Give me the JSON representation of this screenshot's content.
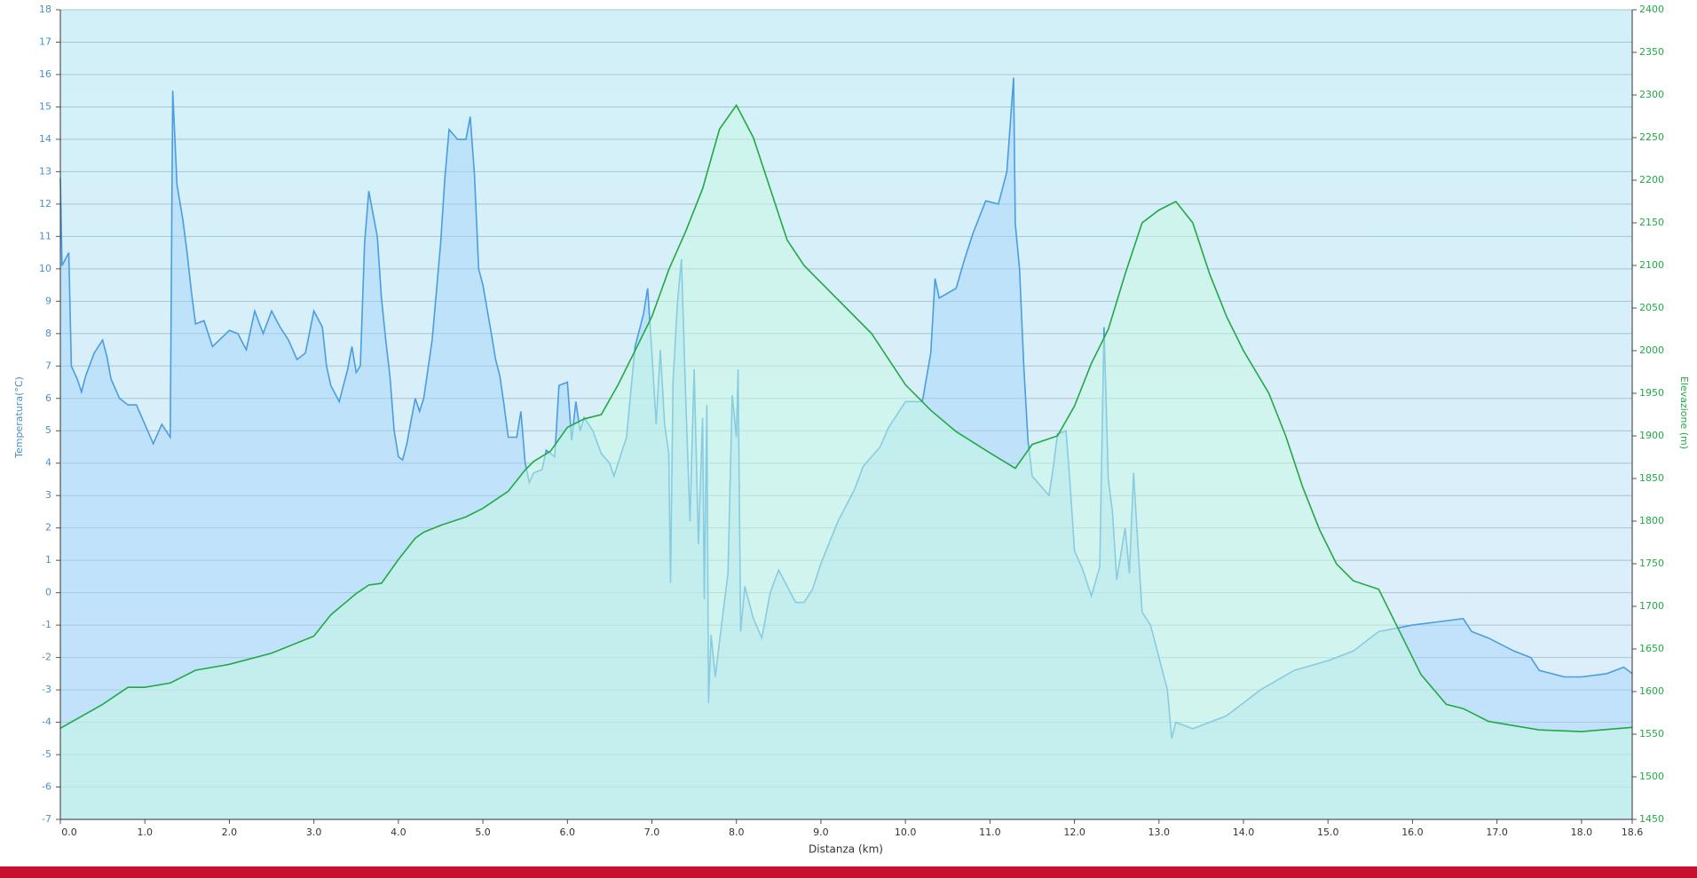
{
  "chart_data": {
    "type": "line",
    "xlabel": "Distanza  (km)",
    "ylabel": "Temperatura(°C)",
    "y2label": "Elevazione (m)",
    "xlim": [
      0,
      18.6
    ],
    "xticks": [
      {
        "value": 0,
        "label": "0.0"
      },
      {
        "value": 1,
        "label": "1.0"
      },
      {
        "value": 2,
        "label": "2.0"
      },
      {
        "value": 3,
        "label": "3.0"
      },
      {
        "value": 4,
        "label": "4.0"
      },
      {
        "value": 5,
        "label": "5.0"
      },
      {
        "value": 6,
        "label": "6.0"
      },
      {
        "value": 7,
        "label": "7.0"
      },
      {
        "value": 8,
        "label": "8.0"
      },
      {
        "value": 9,
        "label": "9.0"
      },
      {
        "value": 10,
        "label": "10.0"
      },
      {
        "value": 11,
        "label": "11.0"
      },
      {
        "value": 12,
        "label": "12.0"
      },
      {
        "value": 13,
        "label": "13.0"
      },
      {
        "value": 14,
        "label": "14.0"
      },
      {
        "value": 15,
        "label": "15.0"
      },
      {
        "value": 16,
        "label": "16.0"
      },
      {
        "value": 17,
        "label": "17.0"
      },
      {
        "value": 18,
        "label": "18.0"
      },
      18.6
    ],
    "ylim": [
      -7,
      18
    ],
    "yticks": [
      -7,
      -6,
      -5,
      -4,
      -3,
      -2,
      -1,
      0,
      1,
      2,
      3,
      4,
      5,
      6,
      7,
      8,
      9,
      10,
      11,
      12,
      13,
      14,
      15,
      16,
      17,
      18
    ],
    "y2lim": [
      1450,
      2400
    ],
    "y2ticks": [
      1450,
      1500,
      1550,
      1600,
      1650,
      1700,
      1750,
      1800,
      1850,
      1900,
      1950,
      2000,
      2050,
      2100,
      2150,
      2200,
      2250,
      2300,
      2350,
      2400
    ],
    "grid": true,
    "series": [
      {
        "name": "Temperatura",
        "color": "#4a9de0",
        "fill": "rgba(160,210,250,0.45)",
        "x": [
          0,
          0.02,
          0.1,
          0.13,
          0.2,
          0.25,
          0.3,
          0.4,
          0.5,
          0.55,
          0.6,
          0.7,
          0.8,
          0.9,
          1,
          1.1,
          1.2,
          1.3,
          1.33,
          1.38,
          1.45,
          1.5,
          1.55,
          1.6,
          1.7,
          1.8,
          2,
          2.1,
          2.2,
          2.3,
          2.4,
          2.5,
          2.6,
          2.7,
          2.8,
          2.9,
          3,
          3.1,
          3.15,
          3.2,
          3.3,
          3.4,
          3.45,
          3.5,
          3.55,
          3.6,
          3.65,
          3.75,
          3.8,
          3.85,
          3.9,
          3.95,
          4,
          4.05,
          4.1,
          4.15,
          4.2,
          4.25,
          4.3,
          4.4,
          4.5,
          4.55,
          4.6,
          4.7,
          4.8,
          4.85,
          4.9,
          4.95,
          5,
          5.1,
          5.15,
          5.2,
          5.25,
          5.3,
          5.4,
          5.45,
          5.5,
          5.55,
          5.6,
          5.7,
          5.75,
          5.85,
          5.9,
          6,
          6.05,
          6.1,
          6.15,
          6.2,
          6.3,
          6.4,
          6.5,
          6.55,
          6.6,
          6.7,
          6.8,
          6.9,
          6.95,
          7,
          7.05,
          7.1,
          7.15,
          7.2,
          7.22,
          7.25,
          7.3,
          7.35,
          7.4,
          7.45,
          7.5,
          7.55,
          7.6,
          7.62,
          7.65,
          7.67,
          7.7,
          7.75,
          7.8,
          7.9,
          7.95,
          8,
          8.02,
          8.05,
          8.1,
          8.2,
          8.3,
          8.4,
          8.5,
          8.6,
          8.7,
          8.8,
          8.9,
          9,
          9.2,
          9.4,
          9.5,
          9.7,
          9.8,
          10,
          10.2,
          10.3,
          10.35,
          10.4,
          10.6,
          10.7,
          10.8,
          10.95,
          11.1,
          11.2,
          11.28,
          11.3,
          11.35,
          11.4,
          11.45,
          11.5,
          11.6,
          11.7,
          11.75,
          11.8,
          11.9,
          11.95,
          12,
          12.1,
          12.2,
          12.3,
          12.35,
          12.4,
          12.45,
          12.5,
          12.6,
          12.65,
          12.7,
          12.75,
          12.8,
          12.9,
          13,
          13.1,
          13.15,
          13.2,
          13.4,
          13.8,
          14,
          14.2,
          14.4,
          14.6,
          15,
          15.3,
          15.6,
          15.8,
          16,
          16.3,
          16.6,
          16.7,
          16.9,
          17.2,
          17.4,
          17.5,
          17.8,
          18,
          18.3,
          18.5,
          18.6
        ],
        "values": [
          12.8,
          10.1,
          10.5,
          7,
          6.6,
          6.2,
          6.7,
          7.4,
          7.8,
          7.3,
          6.6,
          6,
          5.8,
          5.8,
          5.2,
          4.6,
          5.2,
          4.8,
          15.5,
          12.6,
          11.5,
          10.5,
          9.3,
          8.3,
          8.4,
          7.6,
          8.1,
          8,
          7.5,
          8.7,
          8,
          8.7,
          8.2,
          7.8,
          7.2,
          7.4,
          8.7,
          8.2,
          7,
          6.4,
          5.9,
          6.9,
          7.6,
          6.8,
          7,
          10.8,
          12.4,
          11,
          9.1,
          7.8,
          6.7,
          5,
          4.2,
          4.1,
          4.6,
          5.3,
          6,
          5.6,
          6,
          7.8,
          10.8,
          12.8,
          14.3,
          14,
          14,
          14.7,
          12.9,
          10,
          9.5,
          8,
          7.2,
          6.7,
          5.8,
          4.8,
          4.8,
          5.6,
          4,
          3.4,
          3.7,
          3.8,
          4.4,
          4.2,
          6.4,
          6.5,
          4.7,
          5.9,
          5,
          5.4,
          5,
          4.3,
          4,
          3.6,
          4,
          4.8,
          7.6,
          8.6,
          9.4,
          7.4,
          5.2,
          7.5,
          5.2,
          4.3,
          0.3,
          6.5,
          8.9,
          10.3,
          6,
          2.2,
          6.9,
          1.5,
          5.4,
          -0.2,
          5.8,
          -3.4,
          -1.3,
          -2.6,
          -1.5,
          0.6,
          6.1,
          4.8,
          6.9,
          -1.2,
          0.2,
          -0.8,
          -1.4,
          0,
          0.7,
          0.2,
          -0.3,
          -0.3,
          0.1,
          0.9,
          2.2,
          3.2,
          3.9,
          4.5,
          5.1,
          5.9,
          5.9,
          7.4,
          9.7,
          9.1,
          9.4,
          10.3,
          11.1,
          12.1,
          12,
          13,
          15.9,
          11.4,
          10,
          7,
          4.7,
          3.6,
          3.3,
          3,
          3.9,
          4.9,
          5,
          3.3,
          1.3,
          0.7,
          -0.1,
          0.8,
          8.2,
          3.5,
          2.5,
          0.4,
          2,
          0.6,
          3.7,
          1.5,
          -0.6,
          -1,
          -2,
          -3,
          -4.5,
          -4,
          -4.2,
          -3.8,
          -3.4,
          -3,
          -2.7,
          -2.4,
          -2.1,
          -1.8,
          -1.2,
          -1.1,
          -1,
          -0.9,
          -0.8,
          -1.2,
          -1.4,
          -1.8,
          -2,
          -2.4,
          -2.6,
          -2.6,
          -2.5,
          -2.3,
          -2.5
        ]
      },
      {
        "name": "Elevazione",
        "color": "#22a845",
        "fill": "rgba(200,250,225,0.5)",
        "axis": "y2",
        "x": [
          0,
          0.5,
          0.8,
          1,
          1.3,
          1.6,
          2,
          2.5,
          3,
          3.2,
          3.5,
          3.65,
          3.8,
          4,
          4.2,
          4.3,
          4.5,
          4.8,
          5,
          5.3,
          5.5,
          5.6,
          5.8,
          6,
          6.2,
          6.4,
          6.6,
          6.8,
          7,
          7.2,
          7.4,
          7.6,
          7.8,
          8,
          8.2,
          8.4,
          8.6,
          8.8,
          9,
          9.3,
          9.6,
          10,
          10.3,
          10.6,
          11,
          11.3,
          11.5,
          11.8,
          12,
          12.2,
          12.4,
          12.6,
          12.8,
          13,
          13.2,
          13.4,
          13.6,
          13.8,
          14,
          14.3,
          14.5,
          14.7,
          14.9,
          15.1,
          15.3,
          15.6,
          15.8,
          16.1,
          16.4,
          16.6,
          16.9,
          17.2,
          17.5,
          18,
          18.6
        ],
        "values": [
          1557,
          1585,
          1605,
          1605,
          1610,
          1625,
          1632,
          1645,
          1665,
          1690,
          1715,
          1725,
          1727,
          1755,
          1780,
          1787,
          1795,
          1805,
          1815,
          1835,
          1860,
          1870,
          1882,
          1910,
          1920,
          1925,
          1960,
          2000,
          2040,
          2095,
          2140,
          2190,
          2260,
          2288,
          2250,
          2190,
          2130,
          2100,
          2080,
          2050,
          2020,
          1960,
          1930,
          1905,
          1880,
          1862,
          1890,
          1900,
          1935,
          1985,
          2025,
          2090,
          2150,
          2165,
          2175,
          2150,
          2090,
          2040,
          2000,
          1950,
          1900,
          1840,
          1790,
          1750,
          1730,
          1720,
          1680,
          1620,
          1585,
          1580,
          1565,
          1560,
          1555,
          1553,
          1558
        ]
      }
    ]
  }
}
